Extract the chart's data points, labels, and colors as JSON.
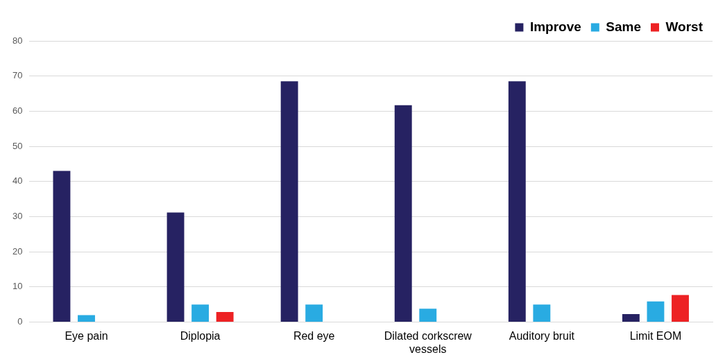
{
  "chart_data": {
    "type": "bar",
    "categories": [
      "Eye pain",
      "Diplopia",
      "Red eye",
      "Dilated corkscrew vessels",
      "Auditory bruit",
      "Limit EOM"
    ],
    "series": [
      {
        "name": "Improve",
        "color": "#262262",
        "values": [
          43.0,
          31.2,
          68.5,
          61.7,
          68.5,
          2.3
        ]
      },
      {
        "name": "Same",
        "color": "#29abe2",
        "values": [
          2.0,
          5.0,
          5.0,
          3.8,
          5.0,
          5.9
        ]
      },
      {
        "name": "Worst",
        "color": "#ed2224",
        "values": [
          0,
          2.9,
          0,
          0,
          0,
          7.7
        ]
      }
    ],
    "ylim": [
      0,
      80
    ],
    "yticks": [
      0,
      10,
      20,
      30,
      40,
      50,
      60,
      70,
      80
    ],
    "grid": "y",
    "legend": "top right"
  }
}
